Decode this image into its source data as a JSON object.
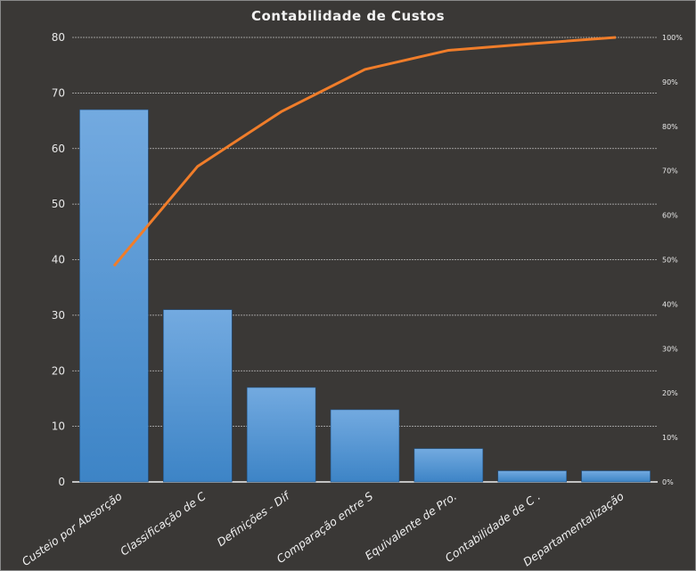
{
  "chart_data": {
    "type": "bar+line",
    "title": "Contabilidade  de Custos",
    "categories": [
      "Custeio por Absorção",
      "Classificação de C",
      "Definições - Dif",
      "Comparação entre S",
      "Equivalente de Pro.",
      "Contabilidade de C .",
      "Departamentalização"
    ],
    "series": [
      {
        "type": "bar",
        "axis": "left",
        "values": [
          67,
          31,
          17,
          13,
          6,
          2,
          2
        ]
      },
      {
        "type": "line",
        "axis": "right",
        "values": [
          48.6,
          71.0,
          83.3,
          92.8,
          97.1,
          98.6,
          100
        ]
      }
    ],
    "ylim": [
      0,
      80
    ],
    "yticks": [
      "0",
      "10",
      "20",
      "30",
      "40",
      "50",
      "60",
      "70",
      "80"
    ],
    "y2lim": [
      0,
      100
    ],
    "y2ticks": [
      "0%",
      "10%",
      "20%",
      "30%",
      "40%",
      "50%",
      "60%",
      "70%",
      "80%",
      "90%",
      "100%"
    ],
    "grid": true,
    "legend": "none",
    "colors": {
      "background": "#3a3836",
      "bar_top": "#73aae0",
      "bar_bottom": "#3d84c6",
      "line": "#f07d2a",
      "grid": "#bdbdbd"
    }
  }
}
